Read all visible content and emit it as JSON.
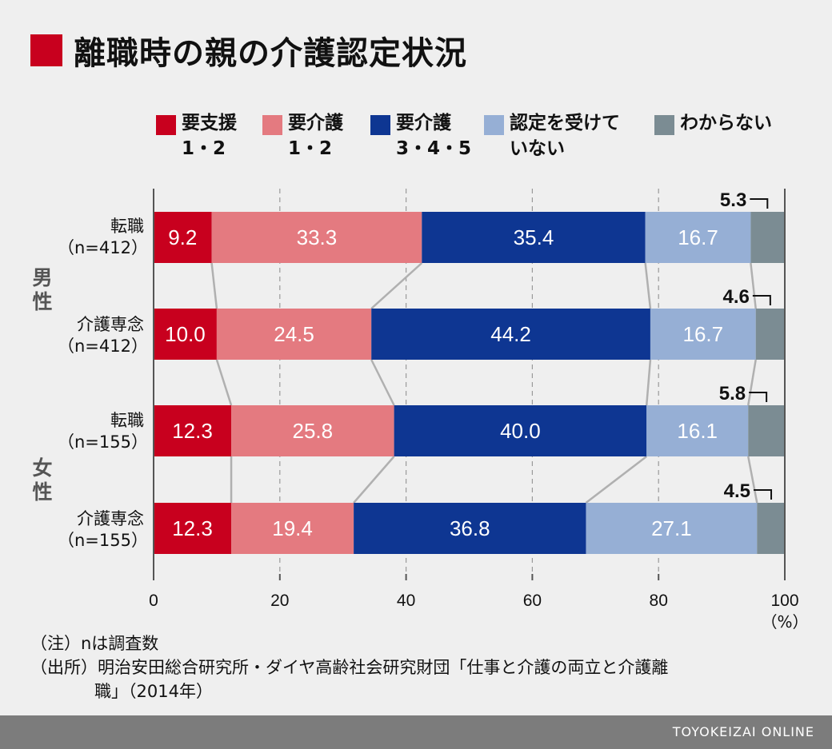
{
  "title": "離職時の親の介護認定状況",
  "legend": [
    {
      "line1": "要支援",
      "line2": "1・2",
      "color": "#c8001e"
    },
    {
      "line1": "要介護",
      "line2": "1・2",
      "color": "#e47a80"
    },
    {
      "line1": "要介護",
      "line2": "3・4・5",
      "color": "#0e3692"
    },
    {
      "line1": "認定を受けて",
      "line2": "いない",
      "color": "#96afd5"
    },
    {
      "line1": "わからない",
      "line2": "",
      "color": "#7b8c93"
    }
  ],
  "groups": [
    {
      "line1": "男",
      "line2": "性"
    },
    {
      "line1": "女",
      "line2": "性"
    }
  ],
  "rows": [
    {
      "line1": "転職",
      "line2": "（n=412）"
    },
    {
      "line1": "介護専念",
      "line2": "（n=412）"
    },
    {
      "line1": "転職",
      "line2": "（n=155）"
    },
    {
      "line1": "介護専念",
      "line2": "（n=155）"
    }
  ],
  "chart_data": {
    "type": "bar",
    "stacked": true,
    "orientation": "horizontal",
    "categories": [
      "男性 転職（n=412）",
      "男性 介護専念（n=412）",
      "女性 転職（n=155）",
      "女性 介護専念（n=155）"
    ],
    "series": [
      {
        "name": "要支援1・2",
        "values": [
          9.2,
          10.0,
          12.3,
          12.3
        ],
        "color": "#c8001e",
        "label_color": "#ffffff"
      },
      {
        "name": "要介護1・2",
        "values": [
          33.3,
          24.5,
          25.8,
          19.4
        ],
        "color": "#e47a80",
        "label_color": "#ffffff"
      },
      {
        "name": "要介護3・4・5",
        "values": [
          35.4,
          44.2,
          40.0,
          36.8
        ],
        "color": "#0e3692",
        "label_color": "#ffffff"
      },
      {
        "name": "認定を受けていない",
        "values": [
          16.7,
          16.7,
          16.1,
          27.1
        ],
        "color": "#96afd5",
        "label_color": "#ffffff"
      },
      {
        "name": "わからない",
        "values": [
          5.3,
          4.6,
          5.8,
          4.5
        ],
        "color": "#7b8c93",
        "label_color": "#111111"
      }
    ],
    "value_labels": [
      [
        "9.2",
        "33.3",
        "35.4",
        "16.7",
        "5.3"
      ],
      [
        "10.0",
        "24.5",
        "44.2",
        "16.7",
        "4.6"
      ],
      [
        "12.3",
        "25.8",
        "40.0",
        "16.1",
        "5.8"
      ],
      [
        "12.3",
        "19.4",
        "36.8",
        "27.1",
        "4.5"
      ]
    ],
    "xlim": [
      0,
      100
    ],
    "xticks": [
      0,
      20,
      40,
      60,
      80,
      100
    ],
    "xtick_labels": [
      "0",
      "20",
      "40",
      "60",
      "80",
      "100"
    ],
    "xunit": "（%）",
    "grid": true
  },
  "notes": [
    "（注）nは調査数",
    "（出所）明治安田総合研究所・ダイヤ高齢社会研究財団「仕事と介護の両立と介護離",
    "職」（2014年）"
  ],
  "footer": "TOYOKEIZAI ONLINE"
}
